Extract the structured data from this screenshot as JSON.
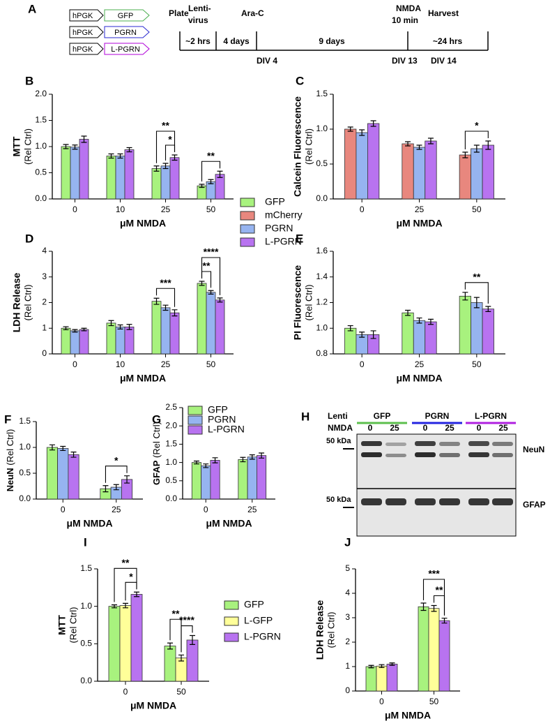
{
  "timeline": {
    "panel": "A",
    "constructs": [
      {
        "promoter": "hPGK",
        "gene": "GFP",
        "color": "#4caf50"
      },
      {
        "promoter": "hPGK",
        "gene": "PGRN",
        "color": "#2a2ad0"
      },
      {
        "promoter": "hPGK",
        "gene": "L-PGRN",
        "color": "#b000d8"
      }
    ],
    "events": [
      [
        "Plate"
      ],
      [
        "Lenti-",
        "virus"
      ],
      [
        "Ara-C"
      ],
      [
        "NMDA",
        "10 min"
      ],
      [
        "Harvest"
      ]
    ],
    "intervals": [
      "~2 hrs",
      "4 days",
      "9 days",
      "~24 hrs"
    ],
    "divs": [
      "DIV 4",
      "DIV 13",
      "DIV 14"
    ]
  },
  "legend": {
    "entries": [
      {
        "name": "GFP",
        "color": "#a8f27e"
      },
      {
        "name": "mCherry",
        "color": "#e8877e"
      },
      {
        "name": "PGRN",
        "color": "#96b4f0"
      },
      {
        "name": "L-PGRN",
        "color": "#b873f0"
      }
    ]
  },
  "blot": {
    "panel": "H",
    "lenti_label": "Lenti",
    "nmda_label": "NMDA",
    "groups": [
      {
        "name": "GFP",
        "color": "#5cbf4c",
        "doses": [
          "0",
          "25"
        ]
      },
      {
        "name": "PGRN",
        "color": "#2424e0",
        "doses": [
          "0",
          "25"
        ]
      },
      {
        "name": "L-PGRN",
        "color": "#b020e0",
        "doses": [
          "0",
          "25"
        ]
      }
    ],
    "markers": [
      "50 kDa",
      "50 kDa"
    ],
    "bands": [
      "NeuN",
      "GFAP"
    ]
  },
  "chart_data": [
    {
      "type": "bar",
      "panel": "B",
      "ylabel": [
        "MTT",
        "(Rel Ctrl)"
      ],
      "xlabel": "μM NMDA",
      "categories": [
        "0",
        "10",
        "25",
        "50"
      ],
      "ylim": [
        0,
        2
      ],
      "yticks": [
        {
          "value": 0,
          "label": "0.0"
        },
        0.5,
        {
          "value": 1,
          "label": "1.0"
        },
        1.5,
        {
          "value": 2,
          "label": "2.0"
        }
      ],
      "series": [
        {
          "name": "GFP",
          "color": "#a8f27e",
          "values": [
            1.0,
            0.82,
            0.58,
            0.25
          ],
          "errors": [
            0.04,
            0.04,
            0.05,
            0.03
          ]
        },
        {
          "name": "PGRN",
          "color": "#96b4f0",
          "values": [
            0.99,
            0.82,
            0.63,
            0.33
          ],
          "errors": [
            0.04,
            0.04,
            0.05,
            0.04
          ]
        },
        {
          "name": "L-PGRN",
          "color": "#b873f0",
          "values": [
            1.14,
            0.94,
            0.79,
            0.47
          ],
          "errors": [
            0.06,
            0.04,
            0.05,
            0.06
          ]
        }
      ],
      "annotations": [
        {
          "text": "*",
          "category": 2,
          "from": 1,
          "to": 2
        },
        {
          "text": "**",
          "category": 2,
          "from": 0,
          "to": 2
        },
        {
          "text": "**",
          "category": 3,
          "from": 0,
          "to": 2
        }
      ]
    },
    {
      "type": "bar",
      "panel": "C",
      "ylabel": [
        "Calcein Fluorescence",
        "(Rel Ctrl)"
      ],
      "xlabel": "μM NMDA",
      "categories": [
        "0",
        "25",
        "50"
      ],
      "ylim": [
        0,
        1.5
      ],
      "yticks": [
        {
          "value": 0,
          "label": "0.0"
        },
        0.5,
        {
          "value": 1,
          "label": "1.0"
        },
        1.5
      ],
      "series": [
        {
          "name": "mCherry",
          "color": "#e8877e",
          "values": [
            1.0,
            0.79,
            0.63
          ],
          "errors": [
            0.03,
            0.03,
            0.04
          ]
        },
        {
          "name": "PGRN",
          "color": "#96b4f0",
          "values": [
            0.95,
            0.74,
            0.72
          ],
          "errors": [
            0.04,
            0.03,
            0.05
          ]
        },
        {
          "name": "L-PGRN",
          "color": "#b873f0",
          "values": [
            1.08,
            0.83,
            0.77
          ],
          "errors": [
            0.04,
            0.04,
            0.06
          ]
        }
      ],
      "annotations": [
        {
          "text": "*",
          "category": 2,
          "from": 0,
          "to": 2
        }
      ]
    },
    {
      "type": "bar",
      "panel": "D",
      "ylabel": [
        "LDH Release",
        "(Rel Ctrl)"
      ],
      "xlabel": "μM NMDA",
      "categories": [
        "0",
        "10",
        "25",
        "50"
      ],
      "ylim": [
        0,
        4
      ],
      "yticks": [
        0,
        1,
        2,
        3,
        4
      ],
      "series": [
        {
          "name": "GFP",
          "color": "#a8f27e",
          "values": [
            1.0,
            1.2,
            2.05,
            2.75
          ],
          "errors": [
            0.06,
            0.1,
            0.12,
            0.08
          ]
        },
        {
          "name": "PGRN",
          "color": "#96b4f0",
          "values": [
            0.9,
            1.05,
            1.8,
            2.4
          ],
          "errors": [
            0.05,
            0.08,
            0.1,
            0.07
          ]
        },
        {
          "name": "L-PGRN",
          "color": "#b873f0",
          "values": [
            0.95,
            1.05,
            1.6,
            2.1
          ],
          "errors": [
            0.05,
            0.1,
            0.12,
            0.08
          ]
        }
      ],
      "annotations": [
        {
          "text": "***",
          "category": 2,
          "from": 0,
          "to": 2
        },
        {
          "text": "**",
          "category": 3,
          "from": 0,
          "to": 1
        },
        {
          "text": "****",
          "category": 3,
          "from": 0,
          "to": 2
        }
      ]
    },
    {
      "type": "bar",
      "panel": "E",
      "ylabel": [
        "PI Fluorescence",
        "(Rel Ctrl)"
      ],
      "xlabel": "μM NMDA",
      "categories": [
        "0",
        "25",
        "50"
      ],
      "ylim": [
        0.8,
        1.6
      ],
      "yticks": [
        0.8,
        {
          "value": 1,
          "label": "1.0"
        },
        1.2,
        1.4,
        1.6
      ],
      "series": [
        {
          "name": "GFP",
          "color": "#a8f27e",
          "values": [
            1.0,
            1.12,
            1.25
          ],
          "errors": [
            0.02,
            0.02,
            0.03
          ]
        },
        {
          "name": "PGRN",
          "color": "#96b4f0",
          "values": [
            0.95,
            1.06,
            1.2
          ],
          "errors": [
            0.02,
            0.02,
            0.04
          ]
        },
        {
          "name": "L-PGRN",
          "color": "#b873f0",
          "values": [
            0.95,
            1.05,
            1.15
          ],
          "errors": [
            0.03,
            0.02,
            0.02
          ]
        }
      ],
      "annotations": [
        {
          "text": "**",
          "category": 2,
          "from": 0,
          "to": 2
        }
      ]
    },
    {
      "type": "bar",
      "panel": "F",
      "ylabel_one_line": true,
      "ylabel": [
        "NeuN",
        "(Rel Ctrl)"
      ],
      "xlabel": "μM NMDA",
      "categories": [
        "0",
        "25"
      ],
      "ylim": [
        0,
        1.5
      ],
      "yticks": [
        {
          "value": 0,
          "label": "0.0"
        },
        0.5,
        {
          "value": 1,
          "label": "1.0"
        },
        1.5
      ],
      "series": [
        {
          "name": "GFP",
          "color": "#a8f27e",
          "values": [
            1.0,
            0.2
          ],
          "errors": [
            0.05,
            0.06
          ]
        },
        {
          "name": "PGRN",
          "color": "#96b4f0",
          "values": [
            0.98,
            0.23
          ],
          "errors": [
            0.04,
            0.05
          ]
        },
        {
          "name": "L-PGRN",
          "color": "#b873f0",
          "values": [
            0.86,
            0.38
          ],
          "errors": [
            0.05,
            0.07
          ]
        }
      ],
      "annotations": [
        {
          "text": "*",
          "category": 1,
          "from": 0,
          "to": 2
        }
      ]
    },
    {
      "type": "bar",
      "panel": "G",
      "ylabel_one_line": true,
      "ylabel": [
        "GFAP",
        "(Rel Ctrl)"
      ],
      "xlabel": "μM NMDA",
      "categories": [
        "0",
        "25"
      ],
      "ylim": [
        0,
        2.5
      ],
      "yticks": [
        {
          "value": 0,
          "label": "0.0"
        },
        0.5,
        {
          "value": 1,
          "label": "1.0"
        },
        1.5,
        {
          "value": 2,
          "label": "2.0"
        },
        2.5
      ],
      "legend": "top-left",
      "series": [
        {
          "name": "GFP",
          "color": "#a8f27e",
          "values": [
            1.0,
            1.08
          ],
          "errors": [
            0.04,
            0.06
          ]
        },
        {
          "name": "PGRN",
          "color": "#96b4f0",
          "values": [
            0.91,
            1.15
          ],
          "errors": [
            0.05,
            0.06
          ]
        },
        {
          "name": "L-PGRN",
          "color": "#b873f0",
          "values": [
            1.06,
            1.19
          ],
          "errors": [
            0.07,
            0.07
          ]
        }
      ],
      "annotations": []
    },
    {
      "type": "bar",
      "panel": "I",
      "ylabel": [
        "MTT",
        "(Rel Ctrl)"
      ],
      "xlabel": "μM NMDA",
      "categories": [
        "0",
        "50"
      ],
      "ylim": [
        0,
        1.5
      ],
      "yticks": [
        {
          "value": 0,
          "label": "0.0"
        },
        0.5,
        {
          "value": 1,
          "label": "1.0"
        },
        1.5
      ],
      "legend": "right",
      "series": [
        {
          "name": "GFP",
          "color": "#a8f27e",
          "values": [
            1.0,
            0.47
          ],
          "errors": [
            0.02,
            0.04
          ]
        },
        {
          "name": "L-GFP",
          "color": "#ffff99",
          "values": [
            1.01,
            0.31
          ],
          "errors": [
            0.03,
            0.04
          ]
        },
        {
          "name": "L-PGRN",
          "color": "#b873f0",
          "values": [
            1.16,
            0.55
          ],
          "errors": [
            0.03,
            0.06
          ]
        }
      ],
      "annotations": [
        {
          "text": "*",
          "category": 0,
          "from": 1,
          "to": 2
        },
        {
          "text": "**",
          "category": 0,
          "from": 0,
          "to": 2
        },
        {
          "text": "****",
          "category": 1,
          "from": 1,
          "to": 2
        },
        {
          "text": "**",
          "category": 1,
          "from": 0,
          "to": 1
        }
      ]
    },
    {
      "type": "bar",
      "panel": "J",
      "ylabel": [
        "LDH Release",
        "(Rel Ctrl)"
      ],
      "xlabel": "μM NMDA",
      "categories": [
        "0",
        "50"
      ],
      "ylim": [
        0,
        5
      ],
      "yticks": [
        0,
        1,
        2,
        3,
        4,
        5
      ],
      "series": [
        {
          "name": "GFP",
          "color": "#a8f27e",
          "values": [
            1.0,
            3.45
          ],
          "errors": [
            0.05,
            0.15
          ]
        },
        {
          "name": "L-GFP",
          "color": "#ffff99",
          "values": [
            1.02,
            3.38
          ],
          "errors": [
            0.06,
            0.12
          ]
        },
        {
          "name": "L-PGRN",
          "color": "#b873f0",
          "values": [
            1.1,
            2.88
          ],
          "errors": [
            0.05,
            0.1
          ]
        }
      ],
      "annotations": [
        {
          "text": "**",
          "category": 1,
          "from": 1,
          "to": 2
        },
        {
          "text": "***",
          "category": 1,
          "from": 0,
          "to": 2
        }
      ]
    }
  ]
}
